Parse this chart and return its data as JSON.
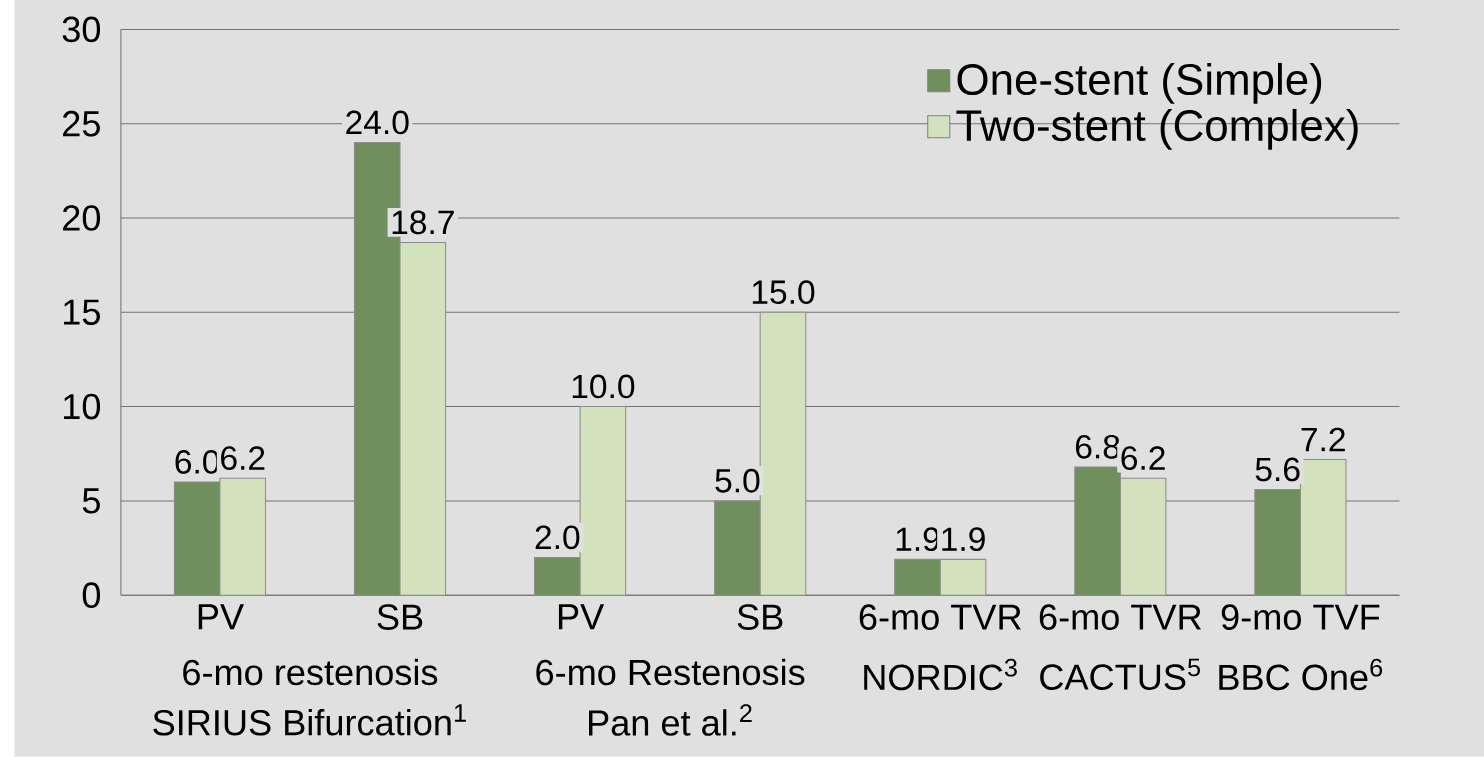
{
  "chart_data": {
    "type": "bar",
    "categories": [
      "PV",
      "SB",
      "PV",
      "SB",
      "6-mo TVR",
      "6-mo TVR",
      "9-mo TVF"
    ],
    "series": [
      {
        "name": "One-stent (Simple)",
        "color": "#6f8f5c",
        "values": [
          6.0,
          24.0,
          2.0,
          5.0,
          1.9,
          6.8,
          5.6
        ],
        "value_labels": [
          "6.0",
          "24.0",
          "2.0",
          "5.0",
          "1.9",
          "6.8",
          "5.6"
        ]
      },
      {
        "name": "Two-stent (Complex)",
        "color": "#d3e2bd",
        "values": [
          6.2,
          18.7,
          10.0,
          15.0,
          1.9,
          6.2,
          7.2
        ],
        "value_labels": [
          "6.2",
          "18.7",
          "10.0",
          "15.0",
          "1.9",
          "6.2",
          "7.2"
        ]
      }
    ],
    "annotations": [
      "6-mo restenosis",
      "SIRIUS Bifurcation$^{1}$",
      "6-mo Restenosis",
      "Pan et al.$^{2}$",
      "NORDIC$^{3}$",
      "CACTUS$^{5}$",
      "BBC One$^{6}$"
    ],
    "ylim": [
      0,
      30
    ],
    "yticks": [
      0,
      5,
      10,
      15,
      20,
      25,
      30
    ],
    "grid": "y",
    "legend": "top right"
  }
}
